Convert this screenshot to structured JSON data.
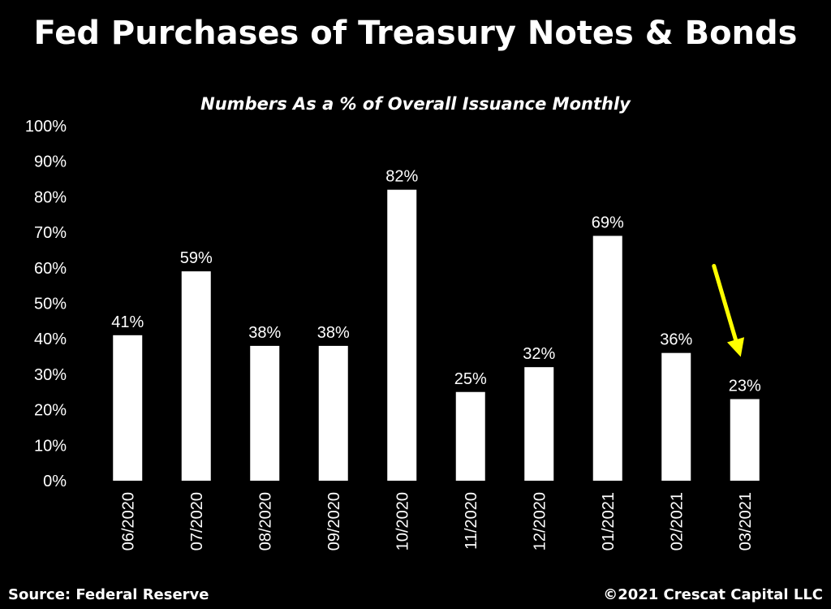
{
  "header": {
    "title": "Fed Purchases of Treasury Notes & Bonds",
    "subtitle": "Numbers As a % of Overall Issuance Monthly"
  },
  "footer": {
    "source": "Source: Federal Reserve",
    "copyright": "©2021 Crescat Capital LLC"
  },
  "chart_data": {
    "type": "bar",
    "title": "Fed Purchases of Treasury Notes & Bonds",
    "subtitle": "Numbers As a % of Overall Issuance Monthly",
    "categories": [
      "06/2020",
      "07/2020",
      "08/2020",
      "09/2020",
      "10/2020",
      "11/2020",
      "12/2020",
      "01/2021",
      "02/2021",
      "03/2021"
    ],
    "values": [
      41,
      59,
      38,
      38,
      82,
      25,
      32,
      69,
      36,
      23
    ],
    "value_labels": [
      "41%",
      "59%",
      "38%",
      "38%",
      "82%",
      "25%",
      "32%",
      "69%",
      "36%",
      "23%"
    ],
    "y_ticks": [
      "0%",
      "10%",
      "20%",
      "30%",
      "40%",
      "50%",
      "60%",
      "70%",
      "80%",
      "90%",
      "100%"
    ],
    "ylim": [
      0,
      100
    ],
    "xlabel": "",
    "ylabel": "",
    "grid": false,
    "legend": "none",
    "annotation": {
      "type": "arrow",
      "target_category": "03/2021",
      "color": "#ffff00"
    },
    "colors": {
      "background": "#000000",
      "bar": "#ffffff",
      "text": "#ffffff",
      "arrow": "#ffff00"
    }
  }
}
